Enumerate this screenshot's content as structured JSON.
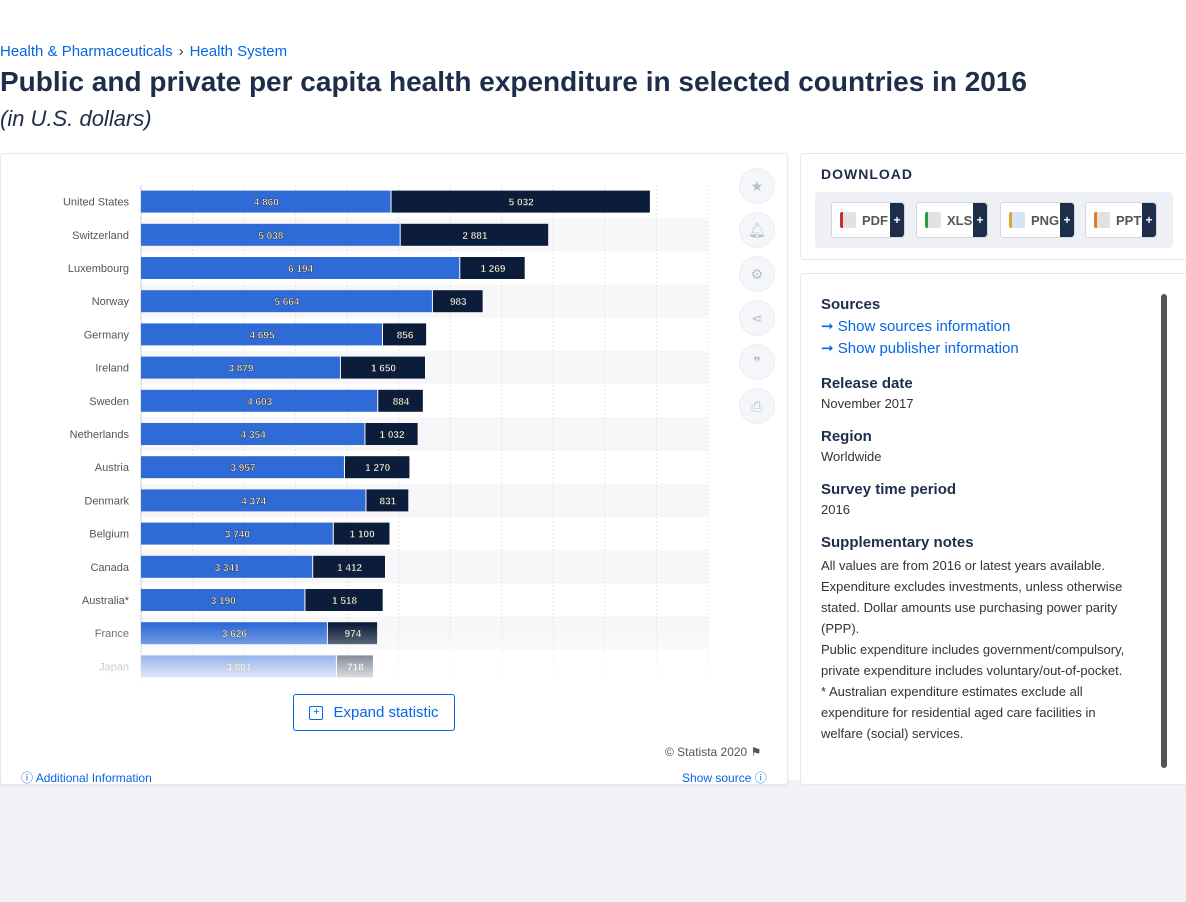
{
  "breadcrumb": {
    "item1": "Health & Pharmaceuticals",
    "sep": "›",
    "item2": "Health System"
  },
  "page_title": "Public and private per capita health expenditure in selected countries in 2016",
  "page_subtitle": "(in U.S. dollars)",
  "chart_data": {
    "type": "bar",
    "orientation": "horizontal",
    "stacked": true,
    "categories": [
      "United States",
      "Switzerland",
      "Luxembourg",
      "Norway",
      "Germany",
      "Ireland",
      "Sweden",
      "Netherlands",
      "Austria",
      "Denmark",
      "Belgium",
      "Canada",
      "Australia*",
      "France",
      "Japan"
    ],
    "series": [
      {
        "values": [
          4860,
          5038,
          6194,
          5664,
          4695,
          3879,
          4603,
          4354,
          3957,
          4374,
          3740,
          3341,
          3190,
          3626,
          3801
        ],
        "labels": [
          "4 860",
          "5 038",
          "6 194",
          "5 664",
          "4 695",
          "3 879",
          "4 603",
          "4 354",
          "3 957",
          "4 374",
          "3 740",
          "3 341",
          "3 190",
          "3 626",
          "3 801"
        ],
        "color": "#2f6bd6"
      },
      {
        "values": [
          5032,
          2881,
          1269,
          983,
          856,
          1650,
          884,
          1032,
          1270,
          831,
          1100,
          1412,
          1518,
          974,
          718
        ],
        "labels": [
          "5 032",
          "2 881",
          "1 269",
          "983",
          "856",
          "1 650",
          "884",
          "1 032",
          "1 270",
          "831",
          "1 100",
          "1 412",
          "1 518",
          "974",
          "718"
        ],
        "color": "#0b1d3a"
      }
    ],
    "xlim": [
      0,
      11000
    ],
    "grid": true
  },
  "expand_label": "Expand statistic",
  "copyright": "© Statista 2020",
  "additional_info": "Additional Information",
  "show_source": "Show source",
  "download": {
    "title": "DOWNLOAD",
    "buttons": [
      "PDF",
      "XLS",
      "PNG",
      "PPT"
    ],
    "plus": "+"
  },
  "info": {
    "sources_h": "Sources",
    "sources_link": "Show sources information",
    "publisher_link": "Show publisher information",
    "release_h": "Release date",
    "release_v": "November 2017",
    "region_h": "Region",
    "region_v": "Worldwide",
    "survey_h": "Survey time period",
    "survey_v": "2016",
    "notes_h": "Supplementary notes",
    "notes_1": "All values are from 2016 or latest years available. Expenditure excludes investments, unless otherwise stated. Dollar amounts use purchasing power parity (PPP).",
    "notes_2": "Public expenditure includes government/compulsory, private expenditure includes voluntary/out-of-pocket.",
    "notes_3": "* Australian expenditure estimates exclude all expenditure for residential aged care facilities in welfare (social) services."
  },
  "colors": {
    "accent": "#0666e5",
    "public": "#2f6bd6",
    "private": "#0b1d3a"
  }
}
